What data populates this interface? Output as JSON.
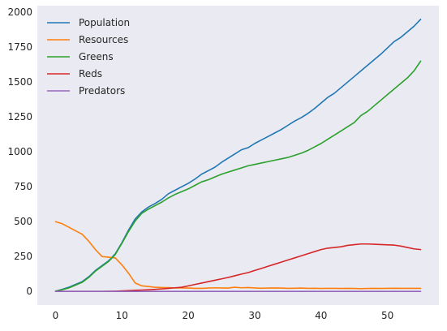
{
  "chart_data": {
    "type": "line",
    "title": "",
    "xlabel": "",
    "ylabel": "",
    "xlim": [
      -2.75,
      57.75
    ],
    "ylim": [
      -97.5,
      2047.5
    ],
    "xticks": [
      0,
      10,
      20,
      30,
      40,
      50
    ],
    "yticks": [
      0,
      250,
      500,
      750,
      1000,
      1250,
      1500,
      1750,
      2000
    ],
    "grid": false,
    "background": "#eaeaf2",
    "legend_position": "top-left",
    "x": [
      0,
      1,
      2,
      3,
      4,
      5,
      6,
      7,
      8,
      9,
      10,
      11,
      12,
      13,
      14,
      15,
      16,
      17,
      18,
      19,
      20,
      21,
      22,
      23,
      24,
      25,
      26,
      27,
      28,
      29,
      30,
      31,
      32,
      33,
      34,
      35,
      36,
      37,
      38,
      39,
      40,
      41,
      42,
      43,
      44,
      45,
      46,
      47,
      48,
      49,
      50,
      51,
      52,
      53,
      54,
      55
    ],
    "series": [
      {
        "name": "Population",
        "color": "#1f77b4",
        "values": [
          2,
          15,
          30,
          50,
          70,
          105,
          150,
          185,
          220,
          270,
          350,
          440,
          520,
          570,
          605,
          630,
          660,
          700,
          725,
          750,
          775,
          805,
          840,
          865,
          890,
          925,
          955,
          985,
          1015,
          1030,
          1060,
          1085,
          1110,
          1135,
          1160,
          1190,
          1220,
          1245,
          1275,
          1310,
          1350,
          1390,
          1420,
          1460,
          1500,
          1540,
          1580,
          1620,
          1660,
          1700,
          1745,
          1790,
          1820,
          1860,
          1900,
          1950
        ]
      },
      {
        "name": "Resources",
        "color": "#ff7f0e",
        "values": [
          500,
          485,
          460,
          435,
          410,
          360,
          300,
          250,
          245,
          240,
          190,
          130,
          60,
          40,
          35,
          30,
          28,
          27,
          25,
          25,
          24,
          22,
          22,
          24,
          26,
          25,
          24,
          30,
          26,
          28,
          25,
          23,
          24,
          25,
          24,
          22,
          23,
          24,
          22,
          23,
          21,
          22,
          22,
          21,
          22,
          21,
          20,
          21,
          22,
          21,
          22,
          23,
          22,
          22,
          22,
          22
        ]
      },
      {
        "name": "Greens",
        "color": "#2ca02c",
        "values": [
          2,
          12,
          25,
          45,
          65,
          100,
          145,
          180,
          215,
          265,
          345,
          430,
          505,
          560,
          590,
          615,
          640,
          670,
          695,
          715,
          735,
          760,
          785,
          800,
          820,
          840,
          855,
          870,
          885,
          900,
          910,
          920,
          930,
          940,
          950,
          960,
          975,
          990,
          1010,
          1035,
          1060,
          1090,
          1120,
          1150,
          1180,
          1210,
          1260,
          1290,
          1330,
          1370,
          1410,
          1450,
          1490,
          1530,
          1580,
          1650
        ]
      },
      {
        "name": "Reds",
        "color": "#d62728",
        "values": [
          0,
          0,
          0,
          0,
          0,
          0,
          0,
          0,
          1,
          2,
          4,
          6,
          8,
          10,
          12,
          15,
          18,
          22,
          26,
          30,
          40,
          50,
          60,
          70,
          80,
          90,
          100,
          112,
          124,
          135,
          150,
          165,
          180,
          195,
          210,
          225,
          240,
          255,
          270,
          285,
          300,
          310,
          315,
          320,
          330,
          335,
          340,
          340,
          338,
          336,
          334,
          332,
          325,
          315,
          305,
          300
        ]
      },
      {
        "name": "Predators",
        "color": "#9467bd",
        "values": [
          0,
          0,
          0,
          0,
          0,
          0,
          0,
          0,
          0,
          0,
          0,
          0,
          0,
          0,
          0,
          0,
          0,
          0,
          0,
          0,
          0,
          0,
          0,
          0,
          0,
          0,
          0,
          0,
          0,
          0,
          0,
          0,
          0,
          0,
          0,
          0,
          0,
          0,
          0,
          0,
          0,
          0,
          0,
          0,
          0,
          0,
          0,
          0,
          0,
          0,
          0,
          0,
          0,
          0,
          0,
          0
        ]
      }
    ]
  }
}
